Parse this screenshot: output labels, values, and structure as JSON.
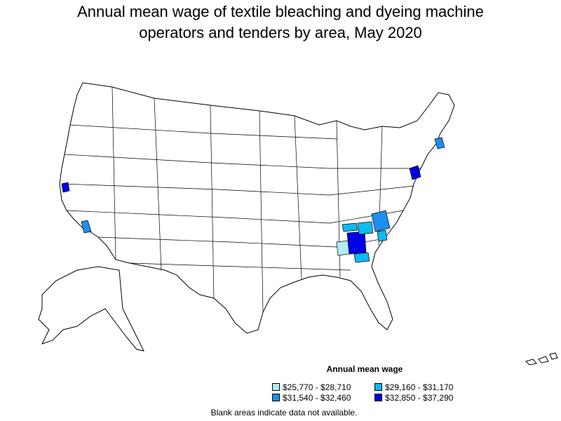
{
  "title_line1": "Annual mean wage of textile bleaching and dyeing machine",
  "title_line2": "operators and tenders by area, May 2020",
  "legend": {
    "title": "Annual mean wage",
    "items": [
      {
        "label": "$25,770 - $28,710",
        "color": "#b3ecf5"
      },
      {
        "label": "$29,160 - $31,170",
        "color": "#12b8f0"
      },
      {
        "label": "$31,540 - $32,460",
        "color": "#1e8ef0"
      },
      {
        "label": "$32,850 - $37,290",
        "color": "#0000e6"
      }
    ]
  },
  "note": "Blank areas indicate data not available.",
  "colors": {
    "outline": "#000000",
    "land": "#ffffff"
  }
}
